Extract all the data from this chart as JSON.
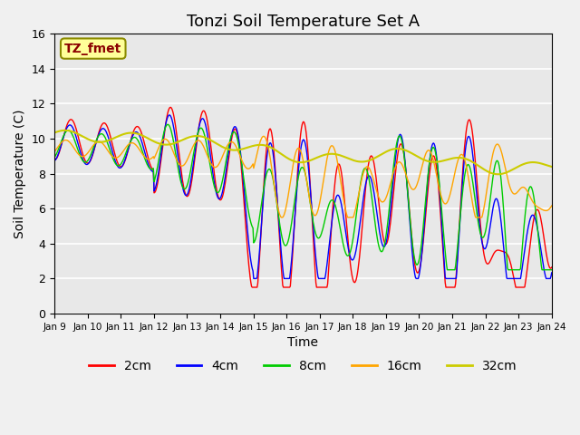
{
  "title": "Tonzi Soil Temperature Set A",
  "xlabel": "Time",
  "ylabel": "Soil Temperature (C)",
  "ylim": [
    0,
    16
  ],
  "yticks": [
    0,
    2,
    4,
    6,
    8,
    10,
    12,
    14,
    16
  ],
  "x_labels": [
    "Jan 9",
    "Jan 10",
    "Jan 11",
    "Jan 12",
    "Jan 13",
    "Jan 14",
    "Jan 15",
    "Jan 16",
    "Jan 17",
    "Jan 18",
    "Jan 19",
    "Jan 20",
    "Jan 21",
    "Jan 22",
    "Jan 23",
    "Jan 24"
  ],
  "annotation_text": "TZ_fmet",
  "annotation_color": "#8B0000",
  "annotation_bg": "#FFFF99",
  "annotation_border": "#8B8B00",
  "colors": {
    "2cm": "#FF0000",
    "4cm": "#0000FF",
    "8cm": "#00CC00",
    "16cm": "#FFA500",
    "32cm": "#CCCC00"
  },
  "bg_color": "#E8E8E8",
  "grid_color": "#FFFFFF",
  "title_fontsize": 13,
  "legend_fontsize": 10
}
